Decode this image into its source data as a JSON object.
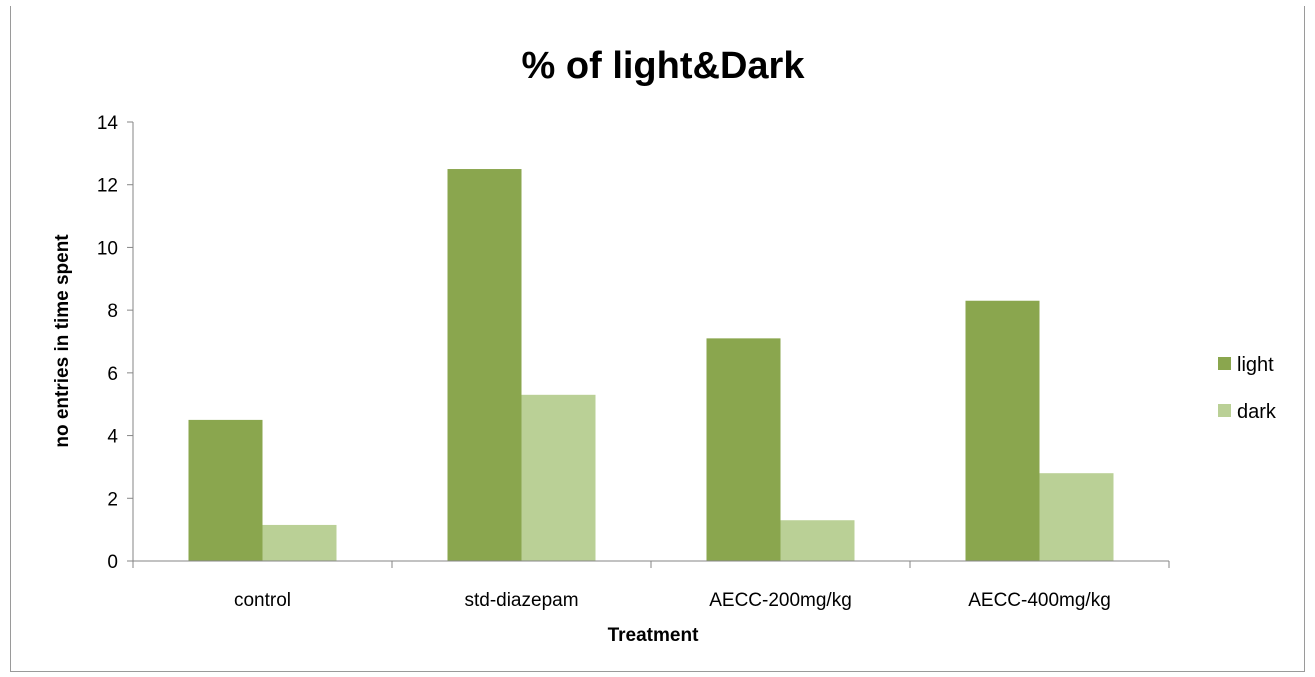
{
  "chart_data": {
    "type": "bar",
    "title": "%  of light&Dark",
    "xlabel": "Treatment",
    "ylabel": "no entries in time spent",
    "categories": [
      "control",
      "std-diazepam",
      "AECC-200mg/kg",
      "AECC-400mg/kg"
    ],
    "series": [
      {
        "name": "light",
        "color": "#8aa64e",
        "values": [
          4.5,
          12.5,
          7.1,
          8.3
        ]
      },
      {
        "name": "dark",
        "color": "#bad096",
        "values": [
          1.15,
          5.3,
          1.3,
          2.8
        ]
      }
    ],
    "ylim": [
      0,
      14
    ],
    "yticks": [
      "0",
      "2",
      "4",
      "6",
      "8",
      "10",
      "12",
      "14"
    ],
    "grid": false,
    "legend_position": "right"
  }
}
